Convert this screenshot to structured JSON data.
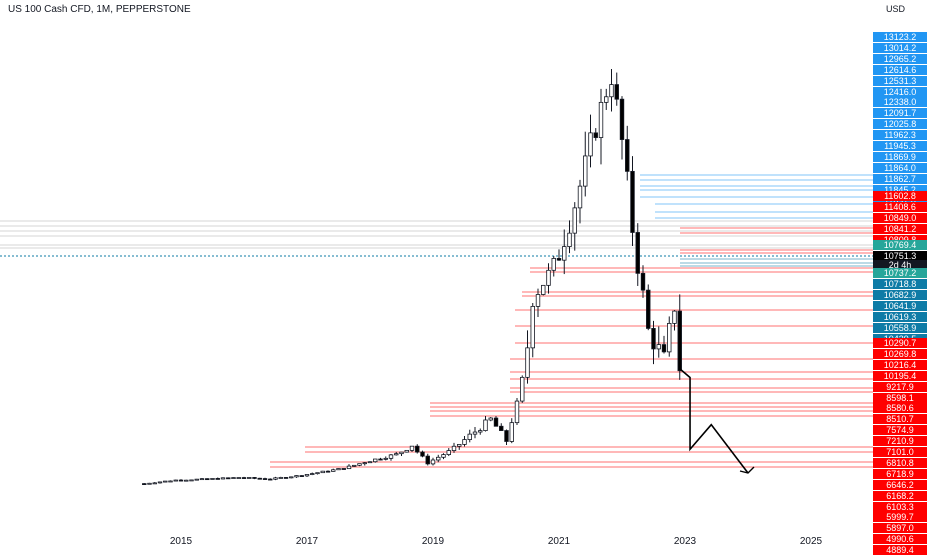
{
  "header": {
    "title": "US 100 Cash CFD, 1M, PEPPERSTONE",
    "currency": "USD"
  },
  "colors": {
    "blue_level": "#2196f3",
    "teal_level": "#0e7ba6",
    "red_level": "#ff0000",
    "green_label": "#26a69a",
    "current": "#000000",
    "candle_up": "#ffffff",
    "candle_down": "#000000"
  },
  "price_labels": {
    "blue": [
      "13123.2",
      "13014.2",
      "12965.2",
      "12614.6",
      "12531.3",
      "12416.0",
      "12338.0",
      "12091.7",
      "12025.8",
      "11962.3",
      "11945.3",
      "11869.9",
      "11864.0",
      "11862.7",
      "11845.2",
      "11837.8"
    ],
    "red_upper": [
      "11602.8",
      "11408.6",
      "10849.0",
      "10841.2",
      "10809.8"
    ],
    "green_upper": "10769.4",
    "current": "10751.3",
    "countdown": "2d 4h",
    "green_lower": "10737.2",
    "teal": [
      "10718.8",
      "10682.9",
      "10641.9",
      "10619.3",
      "10558.9",
      "10439.5"
    ],
    "red_lower": [
      "10290.7",
      "10269.8",
      "10216.4",
      "10195.4",
      "9217.9",
      "8598.1",
      "8580.6",
      "8510.7",
      "7574.9",
      "7210.9",
      "7101.0",
      "6810.8",
      "6718.9",
      "6646.2",
      "6168.2",
      "6103.3",
      "5999.7",
      "5897.0",
      "4990.6",
      "4889.4"
    ]
  },
  "chart_data": {
    "type": "candlestick",
    "title": "US 100 Cash CFD, 1M, PEPPERSTONE",
    "currency": "USD",
    "x_tick_labels": [
      "2015",
      "2017",
      "2019",
      "2021",
      "2023",
      "2025"
    ],
    "approx_monthly_close": [
      {
        "date": "2014-06",
        "close": 3800
      },
      {
        "date": "2014-12",
        "close": 4250
      },
      {
        "date": "2015-06",
        "close": 4400
      },
      {
        "date": "2015-12",
        "close": 4600
      },
      {
        "date": "2016-06",
        "close": 4400
      },
      {
        "date": "2016-12",
        "close": 4900
      },
      {
        "date": "2017-06",
        "close": 5600
      },
      {
        "date": "2017-12",
        "close": 6400
      },
      {
        "date": "2018-06",
        "close": 7000
      },
      {
        "date": "2018-09",
        "close": 7630
      },
      {
        "date": "2018-12",
        "close": 6330
      },
      {
        "date": "2019-06",
        "close": 7670
      },
      {
        "date": "2019-12",
        "close": 8730
      },
      {
        "date": "2020-03",
        "close": 7810
      },
      {
        "date": "2020-08",
        "close": 12100
      },
      {
        "date": "2020-12",
        "close": 12880
      },
      {
        "date": "2021-06",
        "close": 14550
      },
      {
        "date": "2021-11",
        "close": 16350
      },
      {
        "date": "2022-06",
        "close": 11500
      },
      {
        "date": "2022-09",
        "close": 11000
      },
      {
        "date": "2022-11",
        "close": 11950
      },
      {
        "date": "2022-12",
        "close": 10751
      }
    ],
    "projection_path": [
      {
        "date": "2022-12",
        "value": 10751
      },
      {
        "date": "2023-01",
        "value": 10500
      },
      {
        "date": "2023-01",
        "value": 7400
      },
      {
        "date": "2023-06",
        "value": 8500
      },
      {
        "date": "2024-01",
        "value": 5200
      }
    ],
    "grid": false,
    "legend": "none"
  }
}
